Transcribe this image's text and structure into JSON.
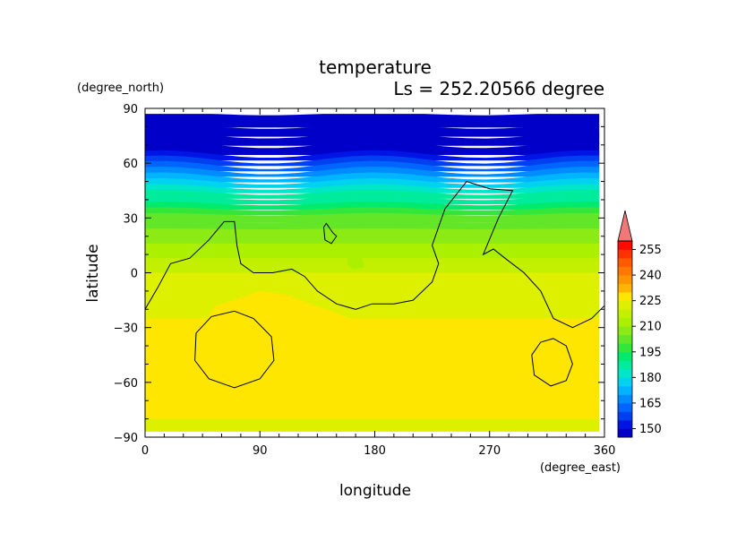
{
  "chart_data": {
    "type": "heatmap",
    "title": "temperature",
    "subtitle": "Ls = 252.20566 degree",
    "xlabel": "longitude",
    "ylabel": "latitude",
    "x_unit": "(degree_east)",
    "y_unit": "(degree_north)",
    "xlim": [
      0,
      360
    ],
    "ylim": [
      -90,
      90
    ],
    "x_ticks": [
      0,
      90,
      180,
      270,
      360
    ],
    "y_ticks": [
      90,
      60,
      30,
      0,
      -30,
      -60,
      -90
    ],
    "x_tick_labels": [
      "0",
      "90",
      "180",
      "270",
      "360"
    ],
    "y_tick_labels": [
      "90",
      "60",
      "30",
      "0",
      "−30",
      "−60",
      "−90"
    ],
    "data_extent": {
      "lon": [
        0,
        356
      ],
      "lat": [
        -87,
        87
      ]
    },
    "colorbar": {
      "ticks": [
        150,
        165,
        180,
        195,
        210,
        225,
        240,
        255
      ],
      "tick_labels": [
        "150",
        "165",
        "180",
        "195",
        "210",
        "225",
        "240",
        "255"
      ],
      "levels": [
        145,
        150,
        155,
        160,
        165,
        170,
        175,
        180,
        185,
        190,
        195,
        200,
        205,
        210,
        215,
        220,
        225,
        230,
        235,
        240,
        245,
        250,
        255,
        260
      ],
      "colors": [
        "#0000c8",
        "#0014e6",
        "#0040f0",
        "#0064ff",
        "#008cff",
        "#00b4ff",
        "#00d2f0",
        "#00e6c8",
        "#00eb9b",
        "#00eb6e",
        "#32e63c",
        "#64e628",
        "#8ceb14",
        "#aaf000",
        "#c3f000",
        "#dcf000",
        "#ffe600",
        "#ffb400",
        "#ff9600",
        "#ff7800",
        "#ff5a00",
        "#ff3200",
        "#ff0a00"
      ],
      "extend_color": "#f07878"
    },
    "temperature_profile": {
      "lat": [
        87,
        80,
        75,
        70,
        65,
        62,
        59,
        56,
        53,
        50,
        47,
        44,
        41,
        38,
        35,
        32,
        28,
        24,
        20,
        16,
        12,
        8,
        4,
        0,
        -4,
        -8,
        -12,
        -16,
        -20,
        -25,
        -30,
        -35,
        -40,
        -45,
        -50,
        -55,
        -60,
        -65,
        -70,
        -75,
        -80,
        -84,
        -87
      ],
      "temperature": [
        146,
        146,
        147,
        148,
        152,
        156,
        160,
        165,
        170,
        175,
        180,
        185,
        189,
        194,
        198,
        201,
        204,
        207,
        209,
        211,
        213,
        215,
        218,
        220,
        222,
        223,
        223,
        223,
        224,
        225,
        227,
        227,
        228,
        228,
        228,
        228,
        228,
        227,
        226,
        225,
        224,
        222,
        220
      ]
    },
    "warm_region_temperature": 228,
    "contour_paths_deg": [
      [
        [
          0,
          -20
        ],
        [
          10,
          -8
        ],
        [
          20,
          5
        ],
        [
          35,
          8
        ],
        [
          50,
          18
        ],
        [
          62,
          28
        ],
        [
          70,
          28
        ],
        [
          72,
          15
        ],
        [
          75,
          5
        ],
        [
          85,
          0
        ],
        [
          100,
          0
        ],
        [
          115,
          2
        ],
        [
          125,
          -2
        ],
        [
          135,
          -10
        ],
        [
          150,
          -17
        ],
        [
          165,
          -20
        ],
        [
          178,
          -17
        ],
        [
          195,
          -17
        ],
        [
          210,
          -15
        ],
        [
          225,
          -5
        ],
        [
          230,
          5
        ],
        [
          225,
          15
        ],
        [
          235,
          35
        ],
        [
          252,
          50
        ],
        [
          270,
          46
        ],
        [
          288,
          45
        ],
        [
          277,
          30
        ],
        [
          265,
          10
        ],
        [
          273,
          13
        ],
        [
          282,
          8
        ],
        [
          297,
          0
        ],
        [
          310,
          -10
        ],
        [
          320,
          -25
        ],
        [
          335,
          -30
        ],
        [
          350,
          -25
        ],
        [
          360,
          -18
        ]
      ],
      [
        [
          147,
          22
        ],
        [
          142,
          27
        ],
        [
          140,
          25
        ],
        [
          141,
          18
        ],
        [
          146,
          16
        ],
        [
          150,
          20
        ],
        [
          147,
          22
        ]
      ],
      [
        [
          70,
          -21
        ],
        [
          85,
          -25
        ],
        [
          99,
          -35
        ],
        [
          101,
          -48
        ],
        [
          90,
          -58
        ],
        [
          70,
          -63
        ],
        [
          50,
          -58
        ],
        [
          39,
          -48
        ],
        [
          40,
          -33
        ],
        [
          52,
          -24
        ],
        [
          70,
          -21
        ]
      ],
      [
        [
          320,
          -36
        ],
        [
          330,
          -40
        ],
        [
          335,
          -50
        ],
        [
          330,
          -59
        ],
        [
          318,
          -62
        ],
        [
          305,
          -56
        ],
        [
          303,
          -45
        ],
        [
          310,
          -38
        ],
        [
          320,
          -36
        ]
      ]
    ]
  }
}
